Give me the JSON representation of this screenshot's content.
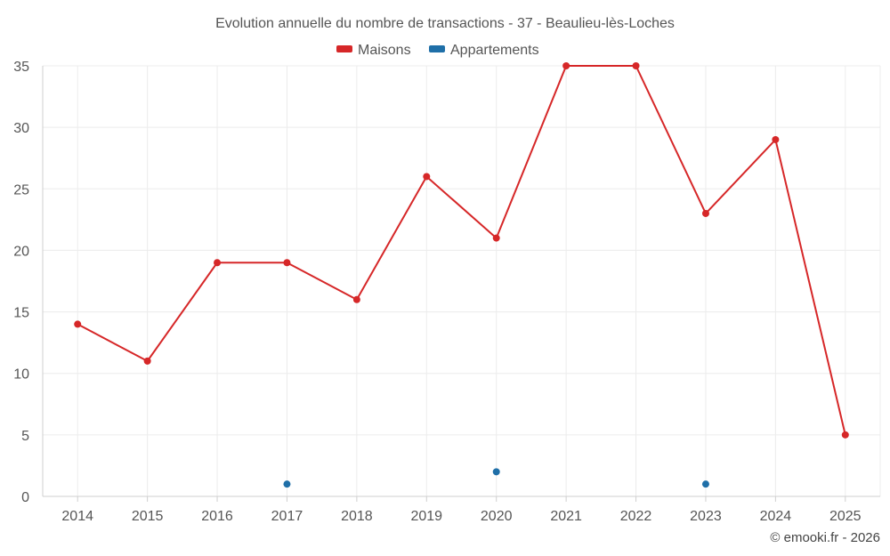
{
  "chart_data": {
    "type": "line",
    "title": "Evolution annuelle du nombre de transactions - 37 - Beaulieu-lès-Loches",
    "categories": [
      "2014",
      "2015",
      "2016",
      "2017",
      "2018",
      "2019",
      "2020",
      "2021",
      "2022",
      "2023",
      "2024",
      "2025"
    ],
    "series": [
      {
        "name": "Maisons",
        "color": "#d62728",
        "values": [
          14,
          11,
          19,
          19,
          16,
          26,
          21,
          35,
          35,
          23,
          29,
          5
        ]
      },
      {
        "name": "Appartements",
        "color": "#1f6fa8",
        "values": [
          null,
          null,
          null,
          1,
          null,
          null,
          2,
          null,
          null,
          1,
          null,
          null
        ]
      }
    ],
    "ylim": [
      0,
      35
    ],
    "yticks": [
      0,
      5,
      10,
      15,
      20,
      25,
      30,
      35
    ],
    "xlabel": "",
    "ylabel": "",
    "grid": true,
    "legend": "top-center"
  },
  "credit": "© emooki.fr - 2026"
}
